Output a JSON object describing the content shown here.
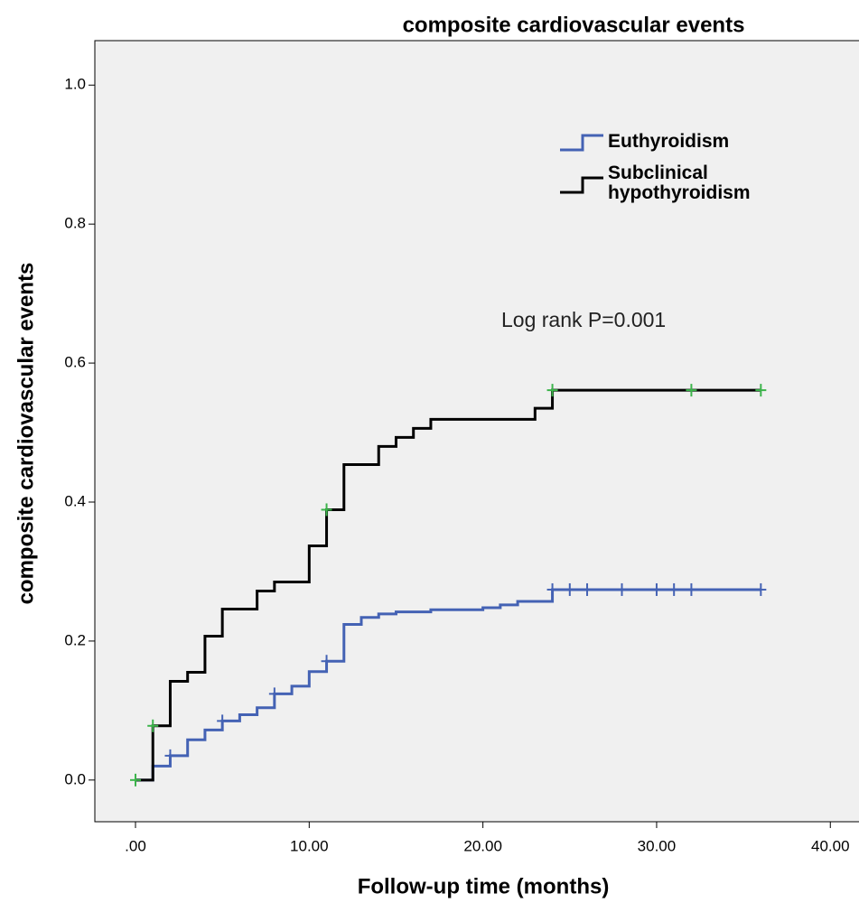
{
  "chart_data": {
    "type": "step",
    "title": "composite cardiovascular events",
    "xlabel": "Follow-up time (months)",
    "ylabel": "composite cardiovascular events",
    "annotation": "Log rank P=0.001",
    "background": "#f0f0f0",
    "xlim": [
      -2.34,
      41.65
    ],
    "ylim": [
      -0.06,
      1.064
    ],
    "xticks": [
      {
        "value": 0,
        "label": ".00"
      },
      {
        "value": 10,
        "label": "10.00"
      },
      {
        "value": 20,
        "label": "20.00"
      },
      {
        "value": 30,
        "label": "30.00"
      },
      {
        "value": 40,
        "label": "40.00"
      }
    ],
    "yticks": [
      {
        "value": 0,
        "label": "0.0"
      },
      {
        "value": 0.2,
        "label": "0.2"
      },
      {
        "value": 0.4,
        "label": "0.4"
      },
      {
        "value": 0.6,
        "label": "0.6"
      },
      {
        "value": 0.8,
        "label": "0.8"
      },
      {
        "value": 1,
        "label": "1.0"
      }
    ],
    "series": [
      {
        "name": "Euthyroidism",
        "color": "#4462b4",
        "censor_color": "#4462b4",
        "x": [
          0,
          1,
          2,
          3,
          4,
          5,
          6,
          7,
          8,
          9,
          10,
          11,
          12,
          13,
          14,
          15,
          17,
          20,
          21,
          22,
          24,
          36
        ],
        "values": [
          0,
          0.02,
          0.035,
          0.058,
          0.072,
          0.085,
          0.094,
          0.104,
          0.124,
          0.135,
          0.156,
          0.171,
          0.224,
          0.234,
          0.239,
          0.242,
          0.245,
          0.248,
          0.252,
          0.257,
          0.274,
          0.274
        ],
        "censor_x": [
          2,
          5,
          8,
          11,
          24,
          25,
          26,
          28,
          30,
          31,
          32,
          36
        ],
        "censor_values": [
          0.035,
          0.085,
          0.124,
          0.171,
          0.274,
          0.274,
          0.274,
          0.274,
          0.274,
          0.274,
          0.274,
          0.274
        ]
      },
      {
        "name": "Subclinical hypothyroidism",
        "color": "#000000",
        "censor_color": "#3cb44b",
        "x": [
          0,
          1,
          2,
          3,
          4,
          5,
          7,
          8,
          10,
          11,
          12,
          14,
          15,
          16,
          17,
          23,
          24,
          36
        ],
        "values": [
          0,
          0.078,
          0.142,
          0.155,
          0.207,
          0.246,
          0.272,
          0.285,
          0.337,
          0.389,
          0.454,
          0.48,
          0.493,
          0.506,
          0.519,
          0.535,
          0.561,
          0.561
        ],
        "censor_x": [
          0,
          1,
          11,
          24,
          32,
          36
        ],
        "censor_values": [
          0,
          0.078,
          0.389,
          0.561,
          0.561,
          0.561
        ]
      }
    ]
  }
}
